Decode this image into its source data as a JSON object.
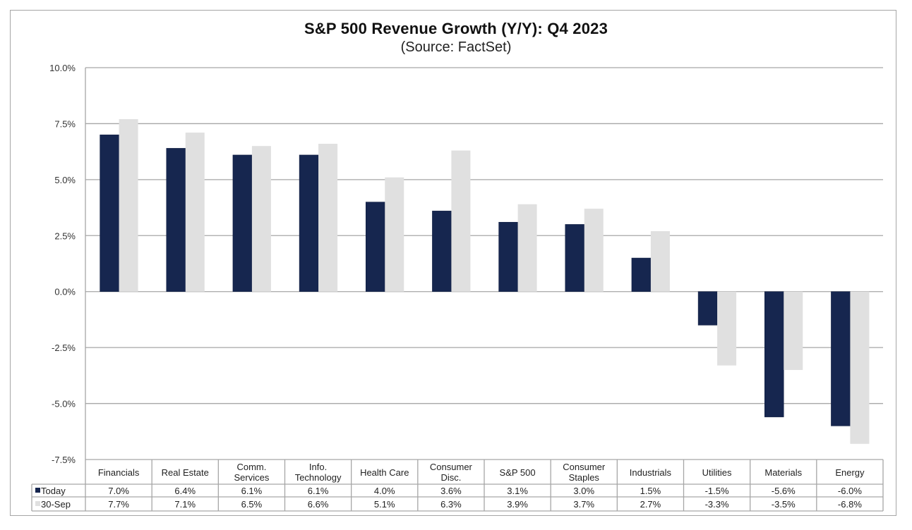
{
  "chart_data": {
    "type": "bar",
    "title": "S&P 500 Revenue Growth (Y/Y): Q4 2023",
    "subtitle": "(Source: FactSet)",
    "xlabel": "",
    "ylabel": "",
    "ylim": [
      -7.5,
      10.0
    ],
    "yticks": [
      10.0,
      7.5,
      5.0,
      2.5,
      0.0,
      -2.5,
      -5.0,
      -7.5
    ],
    "ytick_labels": [
      "10.0%",
      "7.5%",
      "5.0%",
      "2.5%",
      "0.0%",
      "-2.5%",
      "-5.0%",
      "-7.5%"
    ],
    "grid": true,
    "legend_placement": "data-table-left",
    "categories": [
      [
        "Financials"
      ],
      [
        "Real Estate"
      ],
      [
        "Comm.",
        "Services"
      ],
      [
        "Info.",
        "Technology"
      ],
      [
        "Health Care"
      ],
      [
        "Consumer",
        "Disc."
      ],
      [
        "S&P 500"
      ],
      [
        "Consumer",
        "Staples"
      ],
      [
        "Industrials"
      ],
      [
        "Utilities"
      ],
      [
        "Materials"
      ],
      [
        "Energy"
      ]
    ],
    "series": [
      {
        "name": "Today",
        "color": "#16264f",
        "values": [
          7.0,
          6.4,
          6.1,
          6.1,
          4.0,
          3.6,
          3.1,
          3.0,
          1.5,
          -1.5,
          -5.6,
          -6.0
        ],
        "labels": [
          "7.0%",
          "6.4%",
          "6.1%",
          "6.1%",
          "4.0%",
          "3.6%",
          "3.1%",
          "3.0%",
          "1.5%",
          "-1.5%",
          "-5.6%",
          "-6.0%"
        ]
      },
      {
        "name": "30-Sep",
        "color": "#e0e0e0",
        "values": [
          7.7,
          7.1,
          6.5,
          6.6,
          5.1,
          6.3,
          3.9,
          3.7,
          2.7,
          -3.3,
          -3.5,
          -6.8
        ],
        "labels": [
          "7.7%",
          "7.1%",
          "6.5%",
          "6.6%",
          "5.1%",
          "6.3%",
          "3.9%",
          "3.7%",
          "2.7%",
          "-3.3%",
          "-3.5%",
          "-6.8%"
        ]
      }
    ]
  },
  "colors": {
    "gridline": "#a6a6a6",
    "border": "#a6a6a6",
    "text": "#222222"
  }
}
